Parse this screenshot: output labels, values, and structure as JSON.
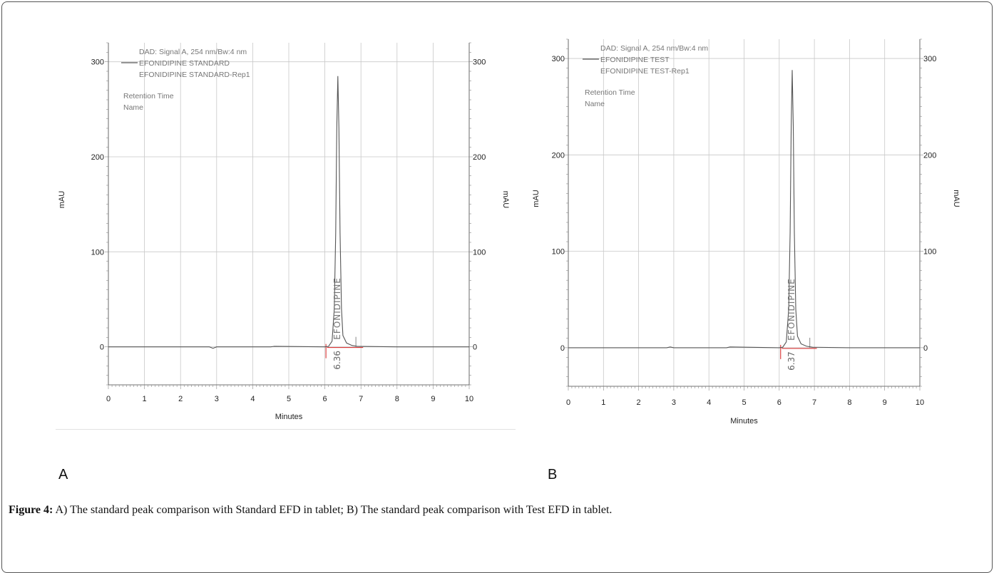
{
  "figure": {
    "label": "Figure 4:",
    "caption": " A) The standard peak comparison with Standard EFD in tablet; B) The standard peak comparison with Test EFD in tablet."
  },
  "colors": {
    "trace": "#555555",
    "baseline": "#d62020",
    "grid": "#c8c8c8",
    "axis": "#444444"
  },
  "chart_data": [
    {
      "type": "line",
      "panel_letter": "A",
      "legend": [
        "DAD: Signal A, 254 nm/Bw:4 nm",
        "EFONIDIPINE STANDARD",
        "EFONIDIPINE STANDARD-Rep1",
        "Retention Time",
        "Name"
      ],
      "xlabel": "Minutes",
      "ylabel_left": "mAU",
      "ylabel_right": "mAU",
      "xlim": [
        0,
        10
      ],
      "ylim": [
        -40,
        320
      ],
      "x_ticks": [
        "0",
        "1",
        "2",
        "3",
        "4",
        "5",
        "6",
        "7",
        "8",
        "9",
        "10"
      ],
      "y_ticks": [
        "0",
        "100",
        "200",
        "300"
      ],
      "y_tick_values": [
        0,
        100,
        200,
        300
      ],
      "peak": {
        "retention_time": 6.36,
        "height": 285,
        "label": "EFONIDIPINE",
        "rt_label": "6.36"
      },
      "x": [
        0,
        2.8,
        2.9,
        3.0,
        4.5,
        4.6,
        6.0,
        6.1,
        6.2,
        6.26,
        6.3,
        6.33,
        6.36,
        6.39,
        6.42,
        6.46,
        6.5,
        6.6,
        6.75,
        6.9,
        8.0,
        10
      ],
      "values": [
        0,
        0,
        -1.5,
        0,
        0,
        0.6,
        0,
        0.5,
        6,
        40,
        120,
        230,
        285,
        230,
        120,
        40,
        12,
        4,
        1.5,
        0.5,
        0,
        0
      ]
    },
    {
      "type": "line",
      "panel_letter": "B",
      "legend": [
        "DAD: Signal A, 254 nm/Bw:4 nm",
        "EFONIDIPINE TEST",
        "EFONIDIPINE TEST-Rep1",
        "Retention Time",
        "Name"
      ],
      "xlabel": "Minutes",
      "ylabel_left": "mAU",
      "ylabel_right": "mAU",
      "xlim": [
        0,
        10
      ],
      "ylim": [
        -40,
        320
      ],
      "x_ticks": [
        "0",
        "1",
        "2",
        "3",
        "4",
        "5",
        "6",
        "7",
        "8",
        "9",
        "10"
      ],
      "y_ticks": [
        "0",
        "100",
        "200",
        "300"
      ],
      "y_tick_values": [
        0,
        100,
        200,
        300
      ],
      "peak": {
        "retention_time": 6.37,
        "height": 288,
        "label": "EFONIDIPINE",
        "rt_label": "6.37"
      },
      "x": [
        0,
        2.8,
        2.9,
        3.0,
        4.5,
        4.6,
        6.0,
        6.1,
        6.2,
        6.27,
        6.31,
        6.34,
        6.37,
        6.4,
        6.43,
        6.47,
        6.52,
        6.62,
        6.78,
        6.95,
        8.0,
        10
      ],
      "values": [
        0,
        0,
        0.8,
        0,
        0,
        0.8,
        0,
        0.5,
        6,
        40,
        120,
        230,
        288,
        230,
        120,
        40,
        12,
        4,
        1.5,
        0.5,
        0,
        0
      ]
    }
  ]
}
